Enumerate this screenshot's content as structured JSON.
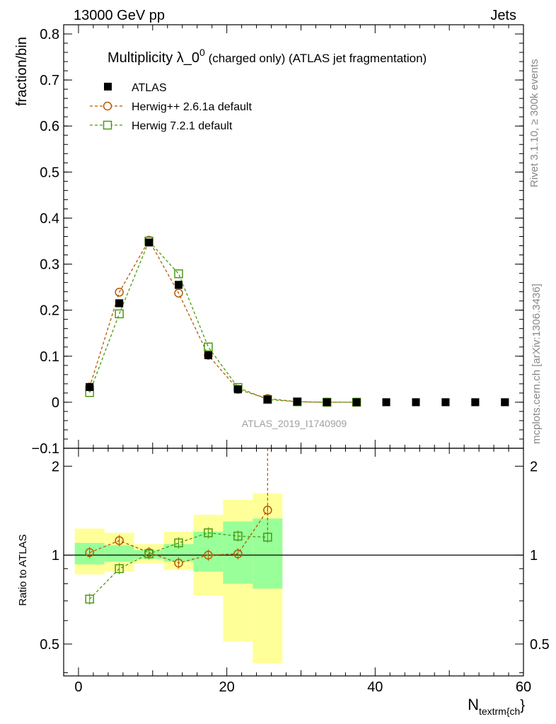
{
  "header": {
    "left_label": "13000 GeV pp",
    "right_label": "Jets"
  },
  "side_labels": {
    "rivet": "Rivet 3.1.10, ≥ 300k events",
    "mcplots": "mcplots.cern.ch [arXiv:1306.3436]"
  },
  "chart_data": [
    {
      "type": "line",
      "title_main": "Multiplicity λ_0",
      "title_sup": "0",
      "title_rest": " (charged only) (ATLAS jet fragmentation)",
      "ylabel": "fraction/bin",
      "xlabel_main": "N",
      "xlabel_sub": "textrm{ch",
      "xlabel_tail": "}",
      "watermark": "ATLAS_2019_I1740909",
      "xlim": [
        -2,
        60
      ],
      "ylim": [
        -0.1,
        0.82
      ],
      "yticks": [
        -0.1,
        0,
        0.1,
        0.2,
        0.3,
        0.4,
        0.5,
        0.6,
        0.7,
        0.8
      ],
      "ytick_labels": [
        "−0.1",
        "0",
        "0.1",
        "0.2",
        "0.3",
        "0.4",
        "0.5",
        "0.6",
        "0.7",
        "0.8"
      ],
      "legend_position": "top-left",
      "series": [
        {
          "name": "ATLAS",
          "style": "data",
          "color": "#000000",
          "x": [
            1.5,
            5.5,
            9.5,
            13.5,
            17.5,
            21.5,
            25.5,
            29.5,
            33.5,
            37.5,
            41.5,
            45.5,
            49.5,
            53.5,
            57.5
          ],
          "y": [
            0.033,
            0.215,
            0.347,
            0.255,
            0.102,
            0.028,
            0.006,
            0.001,
            0.0,
            0.0,
            0.0,
            0.0,
            0.0,
            0.0,
            0.0
          ]
        },
        {
          "name": "Herwig++ 2.6.1a default",
          "style": "circle",
          "color": "#b45a00",
          "x": [
            1.5,
            5.5,
            9.5,
            13.5,
            17.5,
            21.5,
            25.5,
            29.5,
            33.5,
            37.5
          ],
          "y": [
            0.033,
            0.239,
            0.352,
            0.237,
            0.102,
            0.028,
            0.008,
            0.001,
            0.0,
            0.0
          ]
        },
        {
          "name": "Herwig 7.2.1 default",
          "style": "square",
          "color": "#4a9a10",
          "x": [
            1.5,
            5.5,
            9.5,
            13.5,
            17.5,
            21.5,
            25.5,
            29.5,
            33.5,
            37.5
          ],
          "y": [
            0.021,
            0.192,
            0.35,
            0.279,
            0.12,
            0.032,
            0.006,
            0.001,
            0.0,
            0.0
          ]
        }
      ]
    },
    {
      "type": "line",
      "ylabel": "Ratio to ATLAS",
      "xlim": [
        -2,
        60
      ],
      "ylim": [
        0.39,
        2.3
      ],
      "yscale": "log",
      "xticks": [
        0,
        20,
        40,
        60
      ],
      "xtick_labels": [
        "0",
        "20",
        "40",
        "60"
      ],
      "yticks_labeled": [
        0.5,
        1,
        2
      ],
      "ytick_labels": [
        "0.5",
        "1",
        "2"
      ],
      "bands": {
        "bin_edges": [
          -0.5,
          3.5,
          7.5,
          11.5,
          15.5,
          19.5,
          23.5,
          27.5
        ],
        "yellow_low": [
          0.86,
          0.88,
          0.94,
          0.89,
          0.73,
          0.51,
          0.43
        ],
        "yellow_high": [
          1.23,
          1.19,
          1.09,
          1.2,
          1.37,
          1.54,
          1.62
        ],
        "green_low": [
          0.93,
          0.95,
          0.97,
          0.95,
          0.88,
          0.8,
          0.77
        ],
        "green_high": [
          1.1,
          1.08,
          1.04,
          1.09,
          1.2,
          1.3,
          1.33
        ],
        "yellow_color": "#ffff99",
        "green_color": "#99ff99"
      },
      "series": [
        {
          "name": "Herwig++ 2.6.1a default",
          "color": "#b45a00",
          "x": [
            1.5,
            5.5,
            9.5,
            13.5,
            17.5,
            21.5,
            25.5
          ],
          "y": [
            1.02,
            1.12,
            1.02,
            0.94,
            1.0,
            1.01,
            1.42
          ]
        },
        {
          "name": "Herwig 7.2.1 default",
          "color": "#4a9a10",
          "x": [
            1.5,
            5.5,
            9.5,
            13.5,
            17.5,
            21.5,
            25.5
          ],
          "y": [
            0.71,
            0.9,
            1.01,
            1.1,
            1.19,
            1.16,
            1.15
          ]
        }
      ]
    }
  ]
}
